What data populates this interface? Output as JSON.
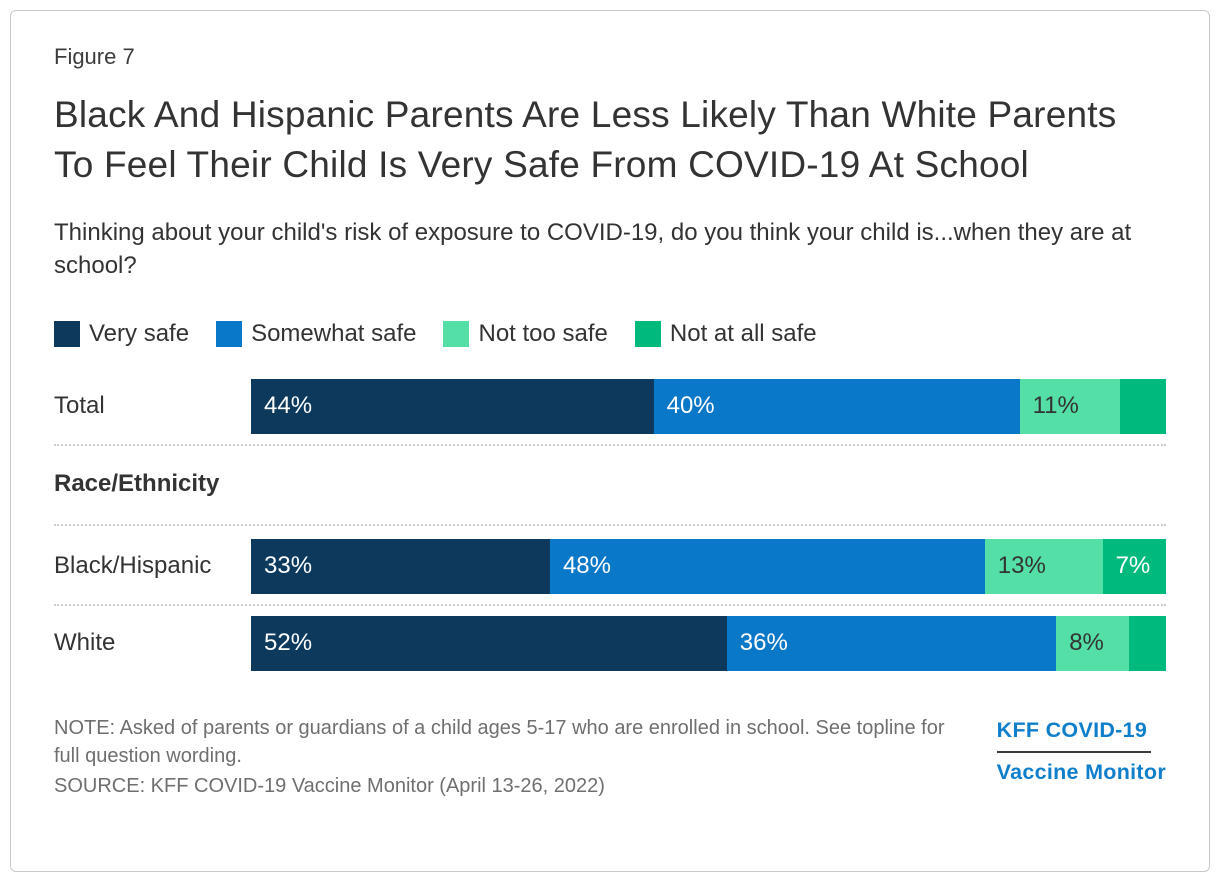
{
  "header": {
    "figure_label": "Figure 7",
    "title": "Black And Hispanic Parents Are Less Likely Than White Parents To Feel Their Child Is Very Safe From COVID-19 At School",
    "subtitle": "Thinking about your child's risk of exposure to COVID-19, do you think your child is...when they are at school?"
  },
  "chart_data": {
    "type": "bar",
    "variant": "horizontal_stacked",
    "unit": "percent",
    "xlim": [
      0,
      100
    ],
    "grid": false,
    "legend_position": "top",
    "series": [
      {
        "name": "Very safe",
        "color": "#0d3a5c",
        "label_color": "#ffffff"
      },
      {
        "name": "Somewhat safe",
        "color": "#0a78c8",
        "label_color": "#ffffff"
      },
      {
        "name": "Not too safe",
        "color": "#54dfa6",
        "label_color": "#333333"
      },
      {
        "name": "Not at all safe",
        "color": "#00b97d",
        "label_color": "#ffffff"
      }
    ],
    "section_header": "Race/Ethnicity",
    "rows": [
      {
        "id": "total",
        "label": "Total",
        "section": null,
        "values": [
          44,
          40,
          11,
          5
        ],
        "value_labels": [
          "44%",
          "40%",
          "11%",
          ""
        ]
      },
      {
        "id": "black-hispanic",
        "label": "Black/Hispanic",
        "section": "Race/Ethnicity",
        "values": [
          33,
          48,
          13,
          7
        ],
        "value_labels": [
          "33%",
          "48%",
          "13%",
          "7%"
        ]
      },
      {
        "id": "white",
        "label": "White",
        "section": "Race/Ethnicity",
        "values": [
          52,
          36,
          8,
          4
        ],
        "value_labels": [
          "52%",
          "36%",
          "8%",
          ""
        ]
      }
    ]
  },
  "footer": {
    "note": "NOTE: Asked of parents or guardians of a child ages 5-17 who are enrolled in school. See topline for full question wording.",
    "source": "SOURCE: KFF COVID-19 Vaccine Monitor (April 13-26, 2022)",
    "logo": {
      "line1": "KFF COVID-19",
      "line2": "Vaccine Monitor",
      "color": "#0f7ecb"
    }
  },
  "colors": {
    "card_border": "#c9c9c9",
    "divider_dotted": "#cccccc",
    "text_primary": "#333333",
    "text_footnote": "#6f6f6f",
    "logo_blue": "#0f7ecb",
    "logo_rule": "#3a3a3a"
  }
}
